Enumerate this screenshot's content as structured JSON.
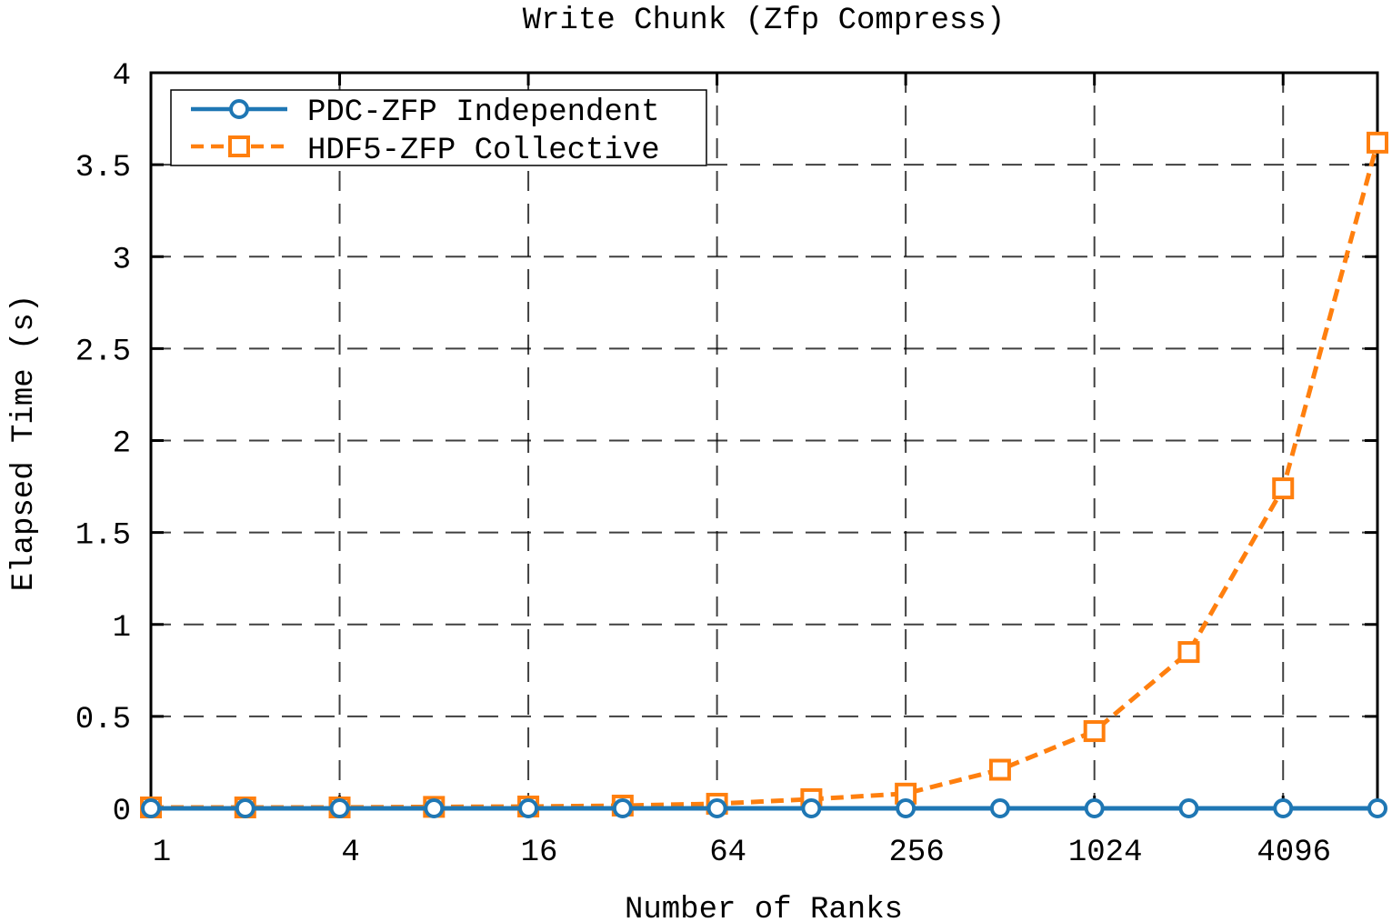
{
  "chart_data": {
    "type": "line",
    "title": "Write Chunk (Zfp Compress)",
    "xlabel": "Number of Ranks",
    "ylabel": "Elapsed Time (s)",
    "x_scale": "log2",
    "x": [
      1,
      2,
      4,
      8,
      16,
      32,
      64,
      128,
      256,
      512,
      1024,
      2048,
      4096,
      8192
    ],
    "xticks": [
      1,
      4,
      16,
      64,
      256,
      1024,
      4096
    ],
    "xtick_labels": [
      "1",
      "4",
      "16",
      "64",
      "256",
      "1024",
      "4096"
    ],
    "xlim": [
      1,
      8192
    ],
    "ylim": [
      0,
      4
    ],
    "yticks": [
      0,
      0.5,
      1,
      1.5,
      2,
      2.5,
      3,
      3.5,
      4
    ],
    "ytick_labels": [
      "0",
      "0.5",
      "1",
      "1.5",
      "2",
      "2.5",
      "3",
      "3.5",
      "4"
    ],
    "grid": true,
    "legend_position": "top-left",
    "series": [
      {
        "name": "PDC-ZFP Independent",
        "color": "#1f77b4",
        "marker": "circle",
        "line_style": "solid",
        "values": [
          0,
          0,
          0,
          0,
          0,
          0,
          0,
          0,
          0,
          0,
          0,
          0,
          0,
          0
        ]
      },
      {
        "name": "HDF5-ZFP Collective",
        "color": "#ff7f0e",
        "marker": "square",
        "line_style": "dashed",
        "values": [
          0.005,
          0.005,
          0.005,
          0.008,
          0.01,
          0.015,
          0.025,
          0.05,
          0.08,
          0.21,
          0.42,
          0.85,
          1.74,
          3.62
        ]
      }
    ]
  }
}
